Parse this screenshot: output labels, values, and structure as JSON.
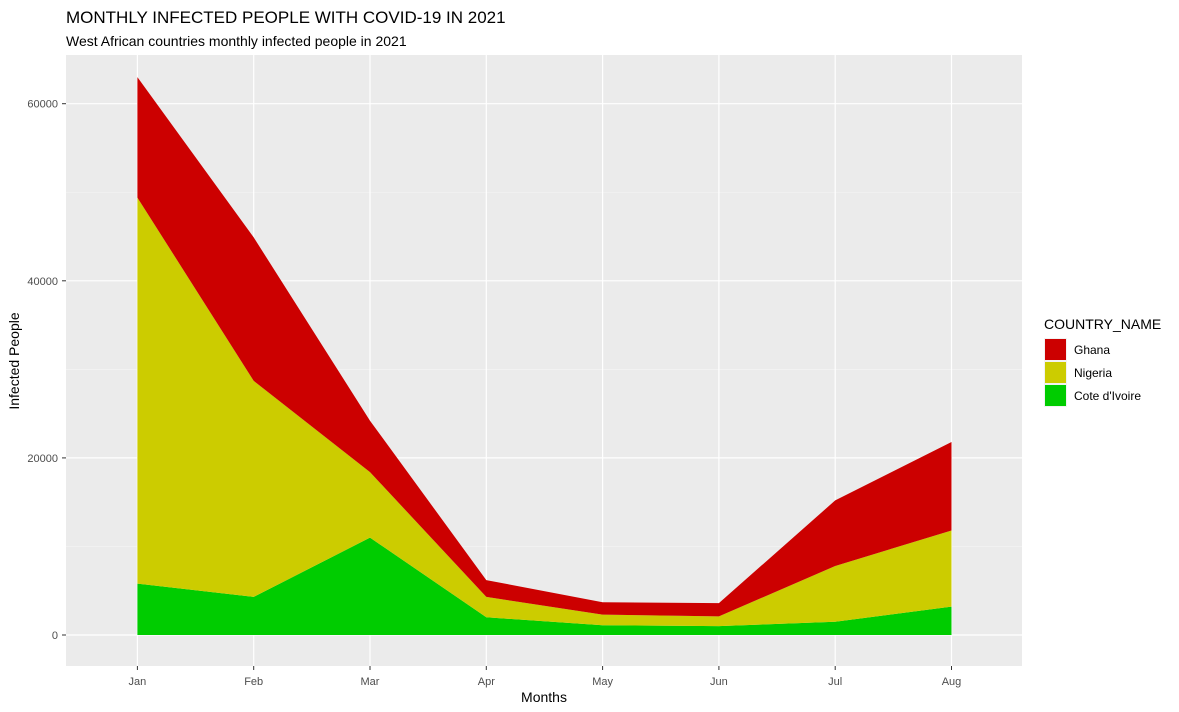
{
  "chart_data": {
    "type": "area",
    "stacked": true,
    "title": "MONTHLY INFECTED PEOPLE WITH COVID-19 IN 2021",
    "subtitle": "West African countries monthly infected people in 2021",
    "xlabel": "Months",
    "ylabel": "Infected People",
    "categories": [
      "Jan",
      "Feb",
      "Mar",
      "Apr",
      "May",
      "Jun",
      "Jul",
      "Aug"
    ],
    "ylim": [
      -3500,
      65500
    ],
    "yticks": [
      0,
      20000,
      40000,
      60000
    ],
    "ytick_labels": [
      "0",
      "20000",
      "40000",
      "60000"
    ],
    "grid": true,
    "legend": {
      "title": "COUNTRY_NAME",
      "position": "right"
    },
    "series": [
      {
        "name": "Ghana",
        "color": "#cc0000",
        "values": [
          13600,
          16200,
          5800,
          1900,
          1400,
          1500,
          7400,
          10000
        ]
      },
      {
        "name": "Nigeria",
        "color": "#cccc00",
        "values": [
          43600,
          24400,
          7400,
          2300,
          1200,
          1100,
          6300,
          8600
        ]
      },
      {
        "name": "Cote d'Ivoire",
        "color": "#00cc00",
        "values": [
          5800,
          4300,
          11000,
          2000,
          1100,
          1000,
          1500,
          3200
        ]
      }
    ]
  }
}
